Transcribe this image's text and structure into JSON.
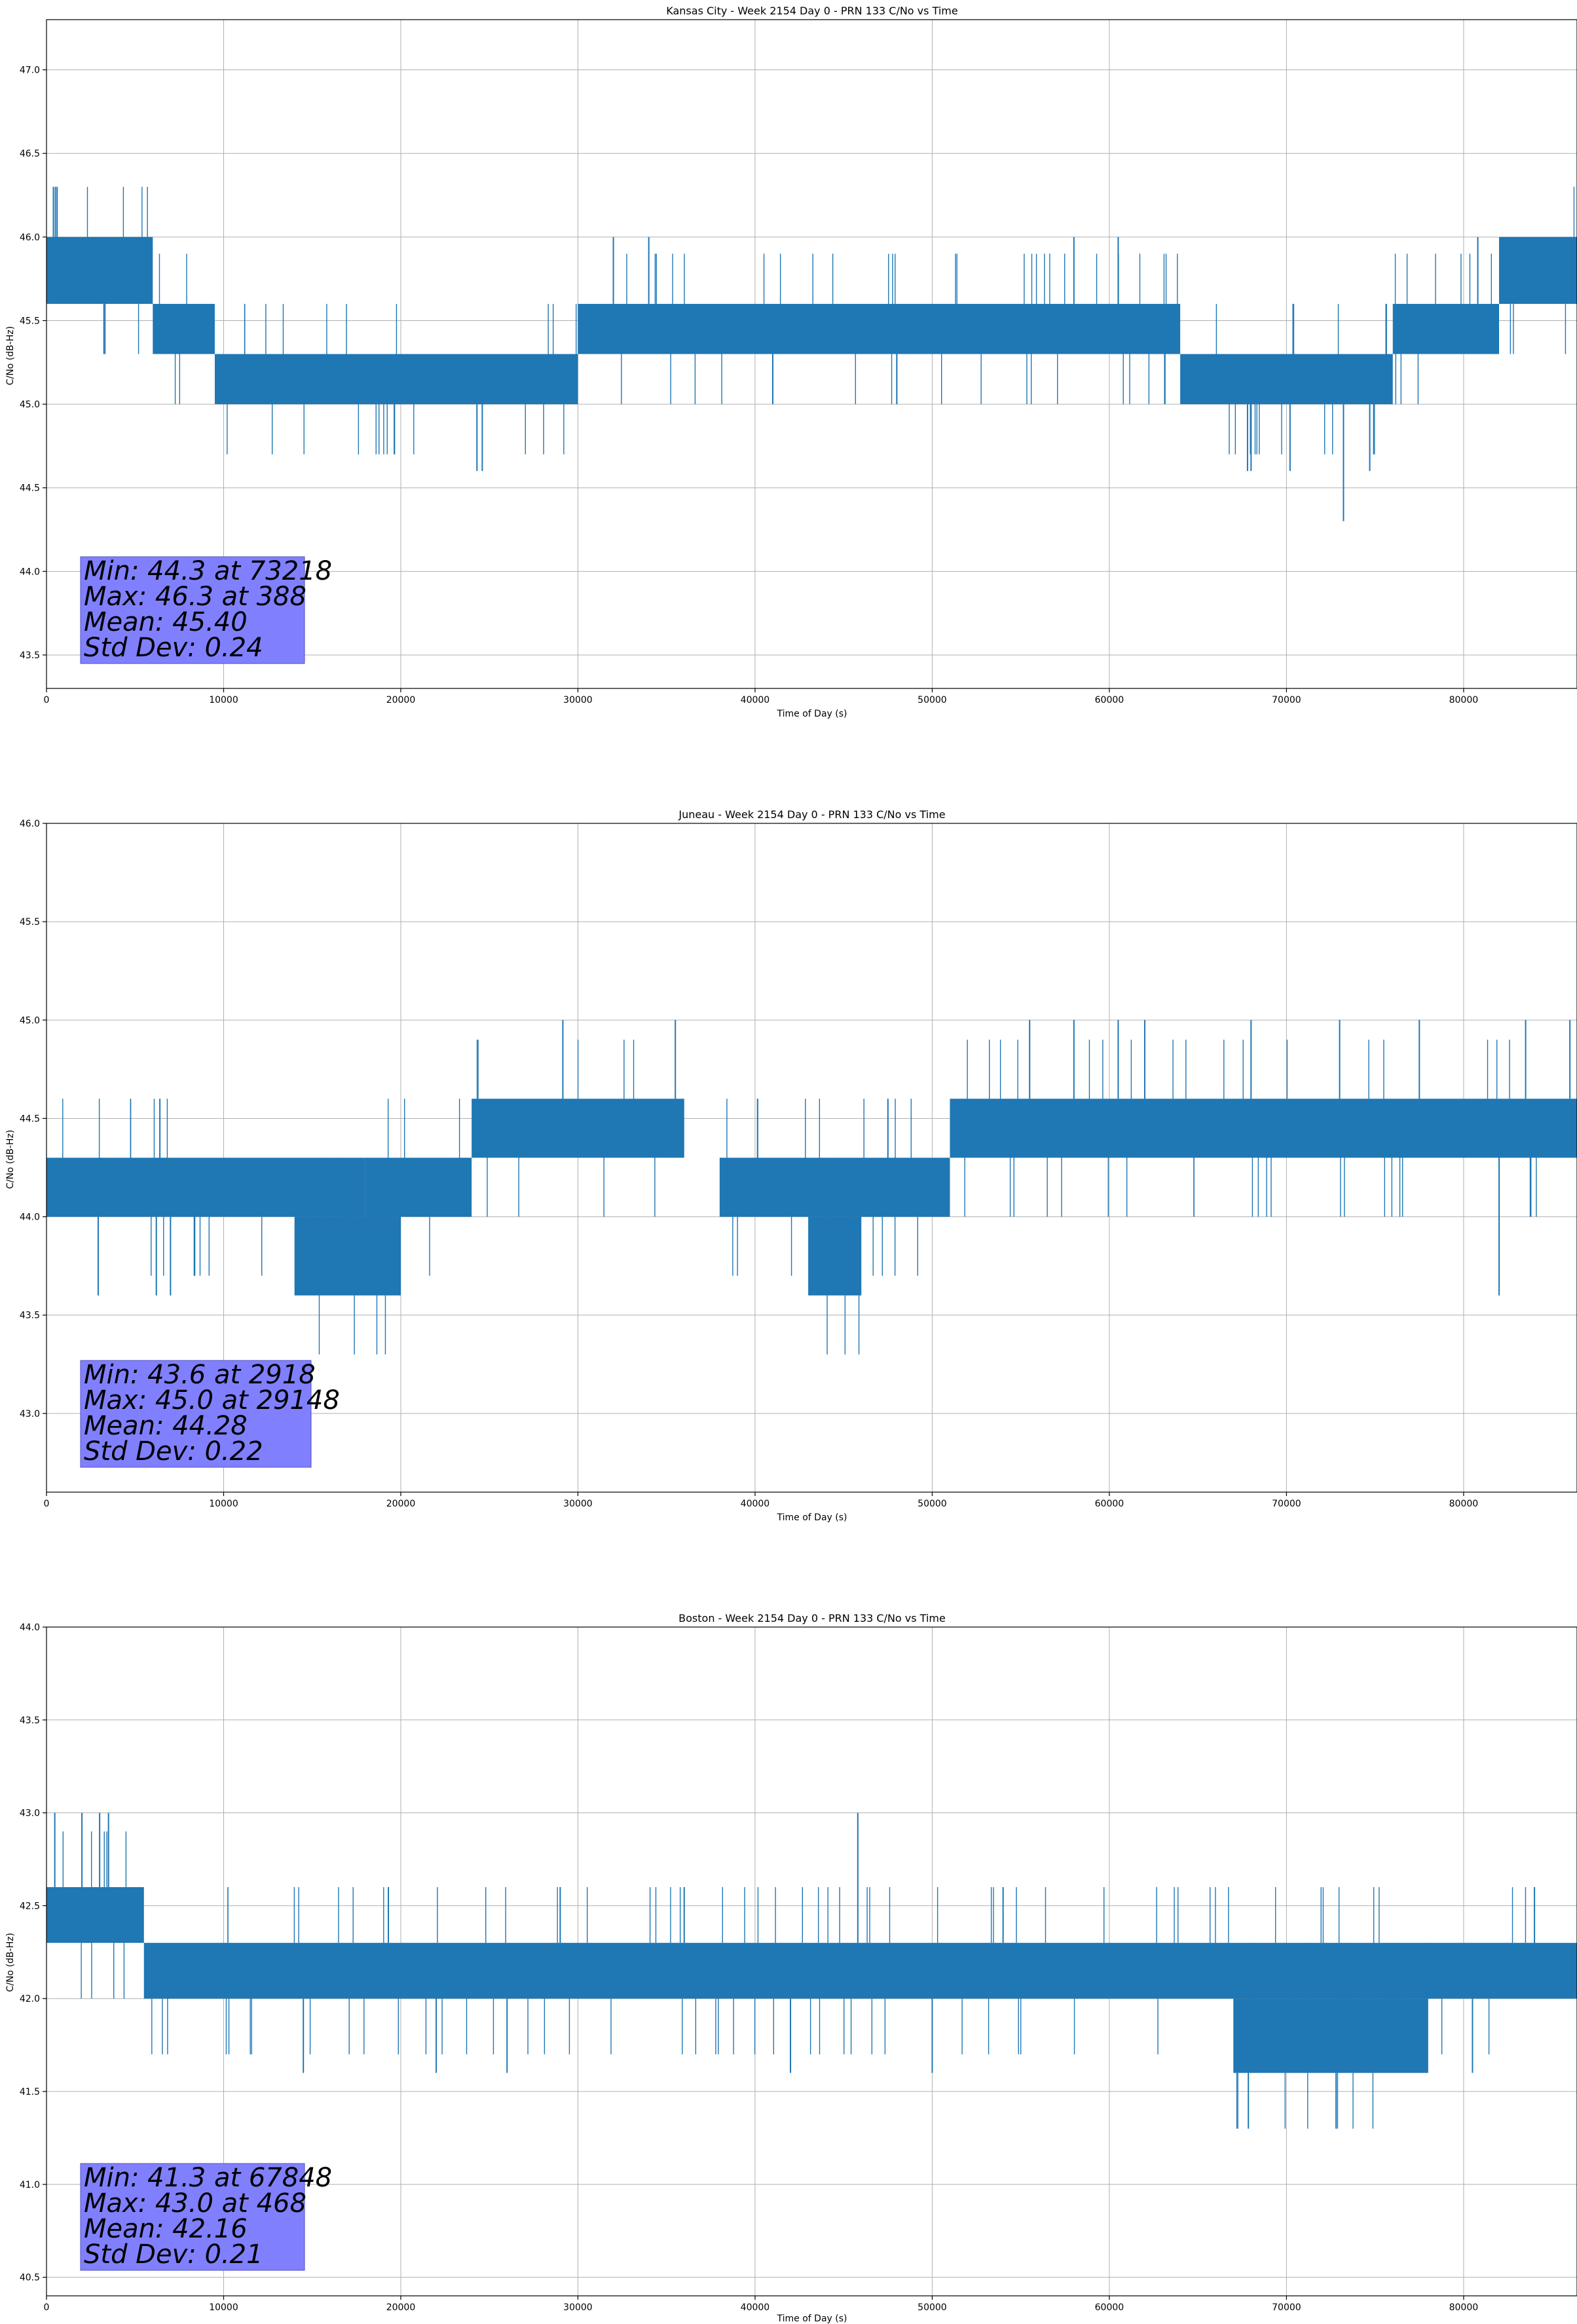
{
  "figure": {
    "background": "#ffffff",
    "series_color": "#1f77b4",
    "stats_box_color": "#8080ff"
  },
  "chart_data": [
    {
      "type": "line",
      "title": "Kansas City - Week 2154 Day 0 - PRN 133 C/No vs Time",
      "xlabel": "Time of Day (s)",
      "ylabel": "C/No (dB-Hz)",
      "xlim": [
        0,
        86400
      ],
      "ylim": [
        43.3,
        47.3
      ],
      "xticks": [
        0,
        10000,
        20000,
        30000,
        40000,
        50000,
        60000,
        70000,
        80000
      ],
      "yticks": [
        43.5,
        44.0,
        44.5,
        45.0,
        45.5,
        46.0,
        46.5,
        47.0
      ],
      "grid": true,
      "series": [
        {
          "segments": [
            {
              "x_start": 0,
              "x_end": 6000,
              "low": 45.6,
              "high": 46.0
            },
            {
              "x_start": 6000,
              "x_end": 9500,
              "low": 45.3,
              "high": 45.6
            },
            {
              "x_start": 9500,
              "x_end": 30000,
              "low": 45.0,
              "high": 45.3
            },
            {
              "x_start": 30000,
              "x_end": 64000,
              "low": 45.3,
              "high": 45.6
            },
            {
              "x_start": 64000,
              "x_end": 76000,
              "low": 45.0,
              "high": 45.3
            },
            {
              "x_start": 76000,
              "x_end": 82000,
              "low": 45.3,
              "high": 45.6
            },
            {
              "x_start": 82000,
              "x_end": 86400,
              "low": 45.6,
              "high": 46.0
            }
          ],
          "spikes": [
            {
              "x": 388,
              "y": 46.3
            },
            {
              "x": 500,
              "y": 46.3
            },
            {
              "x": 600,
              "y": 46.3
            },
            {
              "x": 3300,
              "y": 45.3
            },
            {
              "x": 24300,
              "y": 44.6
            },
            {
              "x": 24600,
              "y": 44.6
            },
            {
              "x": 32000,
              "y": 46.0
            },
            {
              "x": 34000,
              "y": 46.0
            },
            {
              "x": 41000,
              "y": 45.0
            },
            {
              "x": 48000,
              "y": 45.0
            },
            {
              "x": 58000,
              "y": 46.0
            },
            {
              "x": 60500,
              "y": 46.0
            },
            {
              "x": 67800,
              "y": 44.6
            },
            {
              "x": 68000,
              "y": 44.6
            },
            {
              "x": 70200,
              "y": 44.6
            },
            {
              "x": 73218,
              "y": 44.3
            },
            {
              "x": 74700,
              "y": 44.6
            },
            {
              "x": 80800,
              "y": 46.0
            },
            {
              "x": 83500,
              "y": 46.0
            }
          ]
        }
      ],
      "stats": {
        "min_label": "Min: 44.3 at 73218",
        "max_label": "Max: 46.3 at 388",
        "mean_label": "Mean: 45.40",
        "std_label": "Std Dev: 0.24"
      }
    },
    {
      "type": "line",
      "title": "Juneau - Week 2154 Day 0 - PRN 133 C/No vs Time",
      "xlabel": "Time of Day (s)",
      "ylabel": "C/No (dB-Hz)",
      "xlim": [
        0,
        86400
      ],
      "ylim": [
        42.6,
        46.0
      ],
      "xticks": [
        0,
        10000,
        20000,
        30000,
        40000,
        50000,
        60000,
        70000,
        80000
      ],
      "yticks": [
        43.0,
        43.5,
        44.0,
        44.5,
        45.0,
        45.5,
        46.0
      ],
      "grid": true,
      "series": [
        {
          "segments": [
            {
              "x_start": 0,
              "x_end": 18000,
              "low": 44.0,
              "high": 44.3
            },
            {
              "x_start": 14000,
              "x_end": 20000,
              "low": 43.6,
              "high": 44.0
            },
            {
              "x_start": 18000,
              "x_end": 24000,
              "low": 44.0,
              "high": 44.3
            },
            {
              "x_start": 24000,
              "x_end": 36000,
              "low": 44.3,
              "high": 44.6
            },
            {
              "x_start": 38000,
              "x_end": 51000,
              "low": 44.0,
              "high": 44.3
            },
            {
              "x_start": 43000,
              "x_end": 46000,
              "low": 43.6,
              "high": 44.0
            },
            {
              "x_start": 51000,
              "x_end": 86400,
              "low": 44.3,
              "high": 44.6
            }
          ],
          "spikes": [
            {
              "x": 2918,
              "y": 43.6
            },
            {
              "x": 6200,
              "y": 43.6
            },
            {
              "x": 6400,
              "y": 44.6
            },
            {
              "x": 7000,
              "y": 43.6
            },
            {
              "x": 29148,
              "y": 45.0
            },
            {
              "x": 35500,
              "y": 45.0
            },
            {
              "x": 47500,
              "y": 44.6
            },
            {
              "x": 55500,
              "y": 45.0
            },
            {
              "x": 58000,
              "y": 45.0
            },
            {
              "x": 60500,
              "y": 45.0
            },
            {
              "x": 62000,
              "y": 45.0
            },
            {
              "x": 68000,
              "y": 45.0
            },
            {
              "x": 73000,
              "y": 45.0
            },
            {
              "x": 77500,
              "y": 45.0
            },
            {
              "x": 82000,
              "y": 43.6
            },
            {
              "x": 83500,
              "y": 45.0
            },
            {
              "x": 86000,
              "y": 45.0
            }
          ]
        }
      ],
      "stats": {
        "min_label": "Min: 43.6 at 2918",
        "max_label": "Max: 45.0 at 29148",
        "mean_label": "Mean: 44.28",
        "std_label": "Std Dev: 0.22"
      }
    },
    {
      "type": "line",
      "title": "Boston - Week 2154 Day 0 - PRN 133 C/No vs Time",
      "xlabel": "Time of Day (s)",
      "ylabel": "C/No (dB-Hz)",
      "xlim": [
        0,
        86400
      ],
      "ylim": [
        40.4,
        44.0
      ],
      "xticks": [
        0,
        10000,
        20000,
        30000,
        40000,
        50000,
        60000,
        70000,
        80000
      ],
      "yticks": [
        40.5,
        41.0,
        41.5,
        42.0,
        42.5,
        43.0,
        43.5,
        44.0
      ],
      "grid": true,
      "series": [
        {
          "segments": [
            {
              "x_start": 0,
              "x_end": 5500,
              "low": 42.3,
              "high": 42.6
            },
            {
              "x_start": 5500,
              "x_end": 86400,
              "low": 42.0,
              "high": 42.3
            },
            {
              "x_start": 67000,
              "x_end": 78000,
              "low": 41.6,
              "high": 42.0
            }
          ],
          "spikes": [
            {
              "x": 468,
              "y": 43.0
            },
            {
              "x": 2000,
              "y": 43.0
            },
            {
              "x": 3000,
              "y": 43.0
            },
            {
              "x": 3500,
              "y": 43.0
            },
            {
              "x": 14500,
              "y": 41.6
            },
            {
              "x": 19300,
              "y": 42.6
            },
            {
              "x": 22000,
              "y": 41.6
            },
            {
              "x": 26000,
              "y": 41.6
            },
            {
              "x": 29000,
              "y": 42.6
            },
            {
              "x": 36000,
              "y": 42.6
            },
            {
              "x": 42000,
              "y": 41.6
            },
            {
              "x": 45800,
              "y": 43.0
            },
            {
              "x": 50000,
              "y": 41.6
            },
            {
              "x": 54000,
              "y": 42.6
            },
            {
              "x": 67848,
              "y": 41.3
            },
            {
              "x": 72800,
              "y": 41.3
            },
            {
              "x": 80500,
              "y": 41.6
            },
            {
              "x": 84000,
              "y": 42.6
            }
          ]
        }
      ],
      "stats": {
        "min_label": "Min: 41.3 at 67848",
        "max_label": "Max: 43.0 at 468",
        "mean_label": "Mean: 42.16",
        "std_label": "Std Dev: 0.21"
      }
    }
  ]
}
